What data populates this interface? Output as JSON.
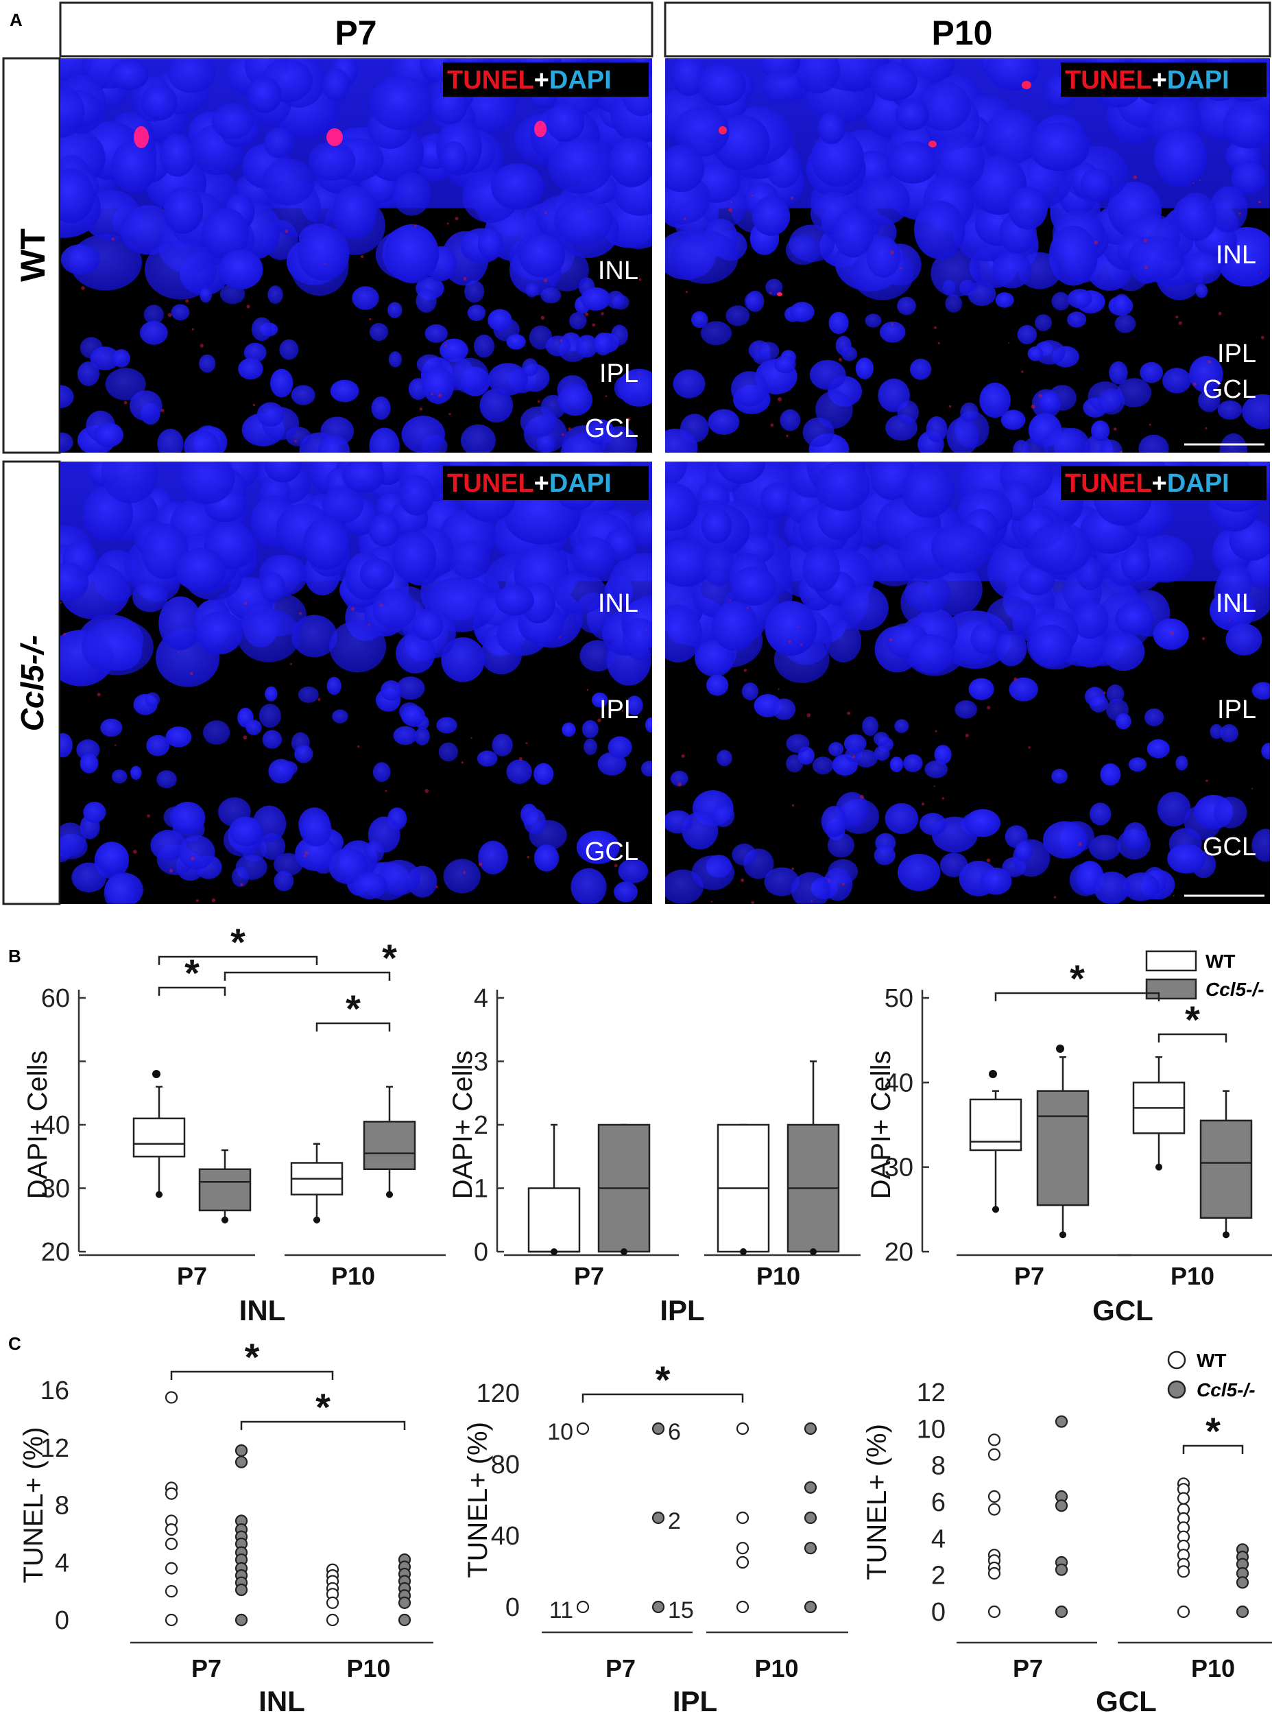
{
  "panel_a": {
    "letter": "A",
    "columns": [
      "P7",
      "P10"
    ],
    "rows": [
      "WT",
      "Ccl5-/-"
    ],
    "stain_red": "TUNEL",
    "stain_plus": "+",
    "stain_blue": "DAPI",
    "images": [
      {
        "layers": [
          "INL",
          "IPL",
          "GCL"
        ],
        "scale_bar": false
      },
      {
        "layers": [
          "INL",
          "IPL",
          "GCL"
        ],
        "scale_bar": true
      },
      {
        "layers": [
          "INL",
          "IPL",
          "GCL"
        ],
        "scale_bar": false
      },
      {
        "layers": [
          "INL",
          "IPL",
          "GCL"
        ],
        "scale_bar": true
      }
    ]
  },
  "panel_b": {
    "letter": "B",
    "legend": [
      "WT",
      "Ccl5-/-"
    ],
    "colors": {
      "wt": "#ffffff",
      "ko": "#808080"
    }
  },
  "panel_c": {
    "letter": "C",
    "legend": [
      "WT",
      "Ccl5-/-"
    ]
  },
  "chart_data": [
    {
      "type": "box",
      "panel": "B",
      "xlabel": "INL",
      "ylabel": "DAPI+ Cells",
      "ylim": [
        20,
        60
      ],
      "yticks": [
        20,
        30,
        40,
        50,
        60
      ],
      "yticklabels": [
        "20",
        "30",
        "40",
        "",
        "60"
      ],
      "categories": [
        "P7",
        "P10"
      ],
      "series": [
        {
          "name": "WT",
          "boxes": [
            {
              "min": 29,
              "q1": 35,
              "median": 37,
              "q3": 41,
              "max": 46,
              "outliers": [
                48
              ]
            },
            {
              "min": 25,
              "q1": 29,
              "median": 31.5,
              "q3": 34,
              "max": 37,
              "outliers": []
            }
          ]
        },
        {
          "name": "Ccl5-/-",
          "boxes": [
            {
              "min": 25,
              "q1": 26.5,
              "median": 31,
              "q3": 33,
              "max": 36,
              "outliers": []
            },
            {
              "min": 29,
              "q1": 33,
              "median": 35.5,
              "q3": 40.5,
              "max": 46,
              "outliers": []
            }
          ]
        }
      ],
      "significance": [
        {
          "from": [
            0,
            0
          ],
          "to": [
            1,
            0
          ],
          "label": "*"
        },
        {
          "from": [
            0,
            0
          ],
          "to": [
            0,
            1
          ],
          "label": "*"
        },
        {
          "from": [
            0,
            1
          ],
          "to": [
            1,
            1
          ],
          "label": "*"
        },
        {
          "from": [
            1,
            0
          ],
          "to": [
            1,
            1
          ],
          "label": "*"
        }
      ]
    },
    {
      "type": "box",
      "panel": "B",
      "xlabel": "IPL",
      "ylabel": "DAPI+ Cells",
      "ylim": [
        0,
        4
      ],
      "yticks": [
        0,
        1,
        2,
        3,
        4
      ],
      "yticklabels": [
        "0",
        "1",
        "2",
        "3",
        "4"
      ],
      "categories": [
        "P7",
        "P10"
      ],
      "series": [
        {
          "name": "WT",
          "boxes": [
            {
              "min": 0,
              "q1": 0,
              "median": 0,
              "q3": 1,
              "max": 2,
              "outliers": []
            },
            {
              "min": 0,
              "q1": 0,
              "median": 1,
              "q3": 2,
              "max": 2,
              "outliers": []
            }
          ]
        },
        {
          "name": "Ccl5-/-",
          "boxes": [
            {
              "min": 0,
              "q1": 0,
              "median": 1,
              "q3": 2,
              "max": 2,
              "outliers": []
            },
            {
              "min": 0,
              "q1": 0,
              "median": 1,
              "q3": 2,
              "max": 3,
              "outliers": []
            }
          ]
        }
      ],
      "significance": []
    },
    {
      "type": "box",
      "panel": "B",
      "xlabel": "GCL",
      "ylabel": "DAPI+ Cells",
      "ylim": [
        20,
        50
      ],
      "yticks": [
        20,
        30,
        40,
        50
      ],
      "yticklabels": [
        "20",
        "30",
        "40",
        "50"
      ],
      "categories": [
        "P7",
        "P10"
      ],
      "series": [
        {
          "name": "WT",
          "boxes": [
            {
              "min": 25,
              "q1": 32,
              "median": 33,
              "q3": 38,
              "max": 39,
              "outliers": [
                41
              ]
            },
            {
              "min": 30,
              "q1": 34,
              "median": 37,
              "q3": 40,
              "max": 43,
              "outliers": []
            }
          ]
        },
        {
          "name": "Ccl5-/-",
          "boxes": [
            {
              "min": 22,
              "q1": 25.5,
              "median": 36,
              "q3": 39,
              "max": 43,
              "outliers": [
                44
              ]
            },
            {
              "min": 22,
              "q1": 24,
              "median": 30.5,
              "q3": 35.5,
              "max": 39,
              "outliers": []
            }
          ]
        }
      ],
      "significance": [
        {
          "from": [
            0,
            0
          ],
          "to": [
            1,
            0
          ],
          "label": "*"
        },
        {
          "from": [
            1,
            0
          ],
          "to": [
            1,
            1
          ],
          "label": "*"
        }
      ]
    },
    {
      "type": "scatter",
      "panel": "C",
      "xlabel": "INL",
      "ylabel": "TUNEL+ (%)",
      "ylim": [
        0,
        16
      ],
      "yticks": [
        0,
        4,
        8,
        12,
        16
      ],
      "categories": [
        "P7",
        "P10"
      ],
      "series": [
        {
          "name": "WT",
          "values": [
            [
              15.5,
              9.2,
              8.8,
              6.9,
              6.3,
              5.3,
              3.6,
              2,
              0
            ],
            [
              3.5,
              3.1,
              2.7,
              2.2,
              1.8,
              1.2,
              0
            ]
          ]
        },
        {
          "name": "Ccl5-/-",
          "values": [
            [
              11.8,
              11,
              6.9,
              6.3,
              5.8,
              5.3,
              4.7,
              4.2,
              3.6,
              3.1,
              2.6,
              2.1,
              0
            ],
            [
              4.2,
              3.7,
              3.2,
              2.7,
              2.2,
              1.7,
              1.2,
              0
            ]
          ]
        }
      ],
      "significance": [
        {
          "from": [
            0,
            0
          ],
          "to": [
            1,
            0
          ],
          "label": "*"
        },
        {
          "from": [
            0,
            1
          ],
          "to": [
            1,
            1
          ],
          "label": "*"
        }
      ]
    },
    {
      "type": "scatter",
      "panel": "C",
      "xlabel": "IPL",
      "ylabel": "TUNEL+ (%)",
      "ylim": [
        0,
        120
      ],
      "yticks": [
        0,
        40,
        80,
        120
      ],
      "categories": [
        "P7",
        "P10"
      ],
      "series": [
        {
          "name": "WT",
          "values": [
            [
              100,
              0
            ],
            [
              100,
              50,
              33,
              25,
              0
            ]
          ]
        },
        {
          "name": "Ccl5-/-",
          "values": [
            [
              100,
              50,
              0
            ],
            [
              100,
              67,
              50,
              33,
              0
            ]
          ]
        }
      ],
      "point_counts": [
        {
          "series": 0,
          "category": 0,
          "value": 100,
          "n": "10"
        },
        {
          "series": 0,
          "category": 0,
          "value": 0,
          "n": "11"
        },
        {
          "series": 1,
          "category": 0,
          "value": 100,
          "n": "6"
        },
        {
          "series": 1,
          "category": 0,
          "value": 50,
          "n": "2"
        },
        {
          "series": 1,
          "category": 0,
          "value": 0,
          "n": "15"
        }
      ],
      "significance": [
        {
          "from": [
            0,
            0
          ],
          "to": [
            1,
            0
          ],
          "label": "*"
        }
      ]
    },
    {
      "type": "scatter",
      "panel": "C",
      "xlabel": "GCL",
      "ylabel": "TUNEL+ (%)",
      "ylim": [
        0,
        12
      ],
      "yticks": [
        0,
        2,
        4,
        6,
        8,
        10,
        12
      ],
      "categories": [
        "P7",
        "P10"
      ],
      "series": [
        {
          "name": "WT",
          "values": [
            [
              9.4,
              8.6,
              6.3,
              5.6,
              3.1,
              2.8,
              2.4,
              2.1,
              0
            ],
            [
              7,
              6.7,
              6.2,
              5.6,
              5.1,
              4.6,
              4.1,
              3.6,
              3.1,
              2.6,
              2.2,
              0
            ]
          ]
        },
        {
          "name": "Ccl5-/-",
          "values": [
            [
              10.4,
              6.3,
              5.8,
              2.7,
              2.3,
              0
            ],
            [
              3.4,
              3,
              2.6,
              2.1,
              1.6,
              0
            ]
          ]
        }
      ],
      "significance": [
        {
          "from": [
            1,
            0
          ],
          "to": [
            1,
            1
          ],
          "label": "*"
        }
      ]
    }
  ]
}
